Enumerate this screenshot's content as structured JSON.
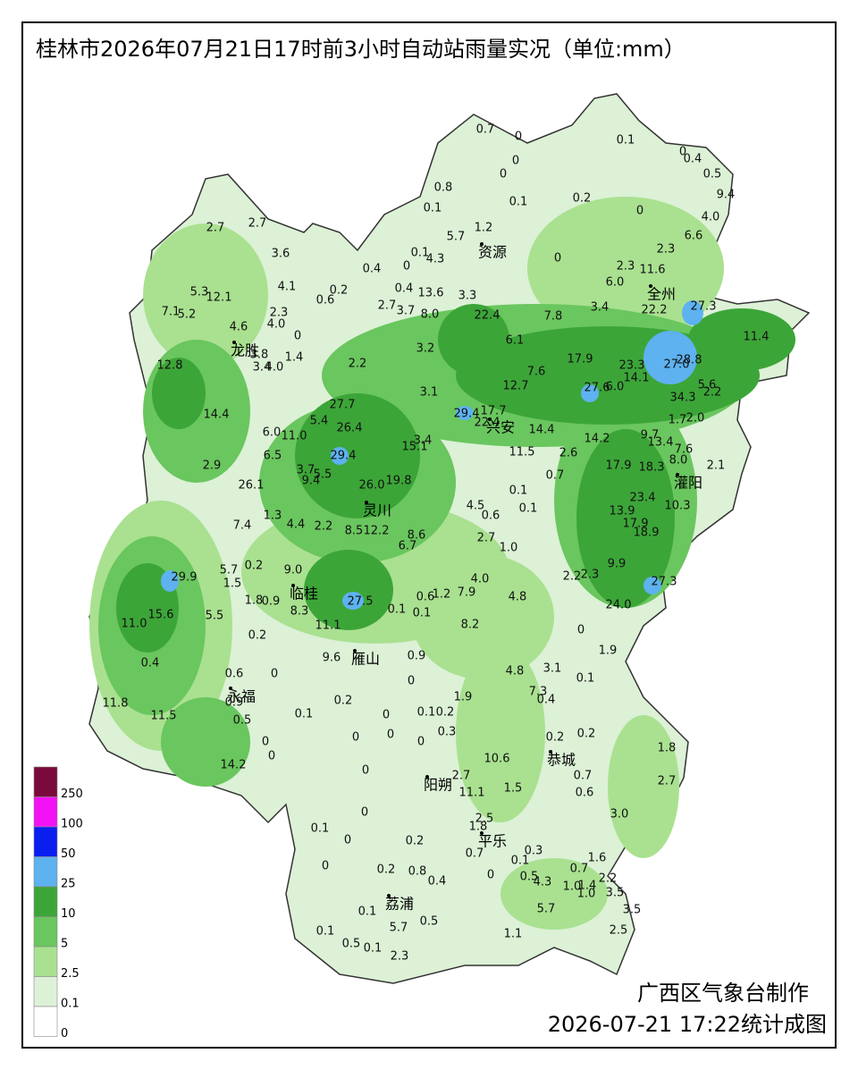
{
  "title": "桂林市2026年07月21日17时前3小时自动站雨量实况（单位:mm）",
  "legend": [
    {
      "label": 250,
      "color": "#7b0a3c"
    },
    {
      "label": 100,
      "color": "#f312f3"
    },
    {
      "label": 50,
      "color": "#0a1ef0"
    },
    {
      "label": 25,
      "color": "#5db2ef"
    },
    {
      "label": 10,
      "color": "#3ca538"
    },
    {
      "label": 5,
      "color": "#6ac65e"
    },
    {
      "label": 2.5,
      "color": "#a9e190"
    },
    {
      "label": 0.1,
      "color": "#dcf1d6"
    },
    {
      "label": 0,
      "color": "#ffffff"
    }
  ],
  "cities": [
    "资源",
    "全州",
    "龙胜",
    "兴安",
    "灌阳",
    "灵川",
    "临桂",
    "雁山",
    "永福",
    "阳朔",
    "恭城",
    "平乐",
    "荔浦"
  ],
  "stations": [
    "0.7",
    "0",
    "0",
    "0.1",
    "0",
    "0.4",
    "0.5",
    "9.4",
    "0.8",
    "0",
    "0.1",
    "0.2",
    "0",
    "4.0",
    "0.1",
    "1.2",
    "6.6",
    "5.7",
    "2.7",
    "2.7",
    "3.6",
    "0.1",
    "4.3",
    "0",
    "2.3",
    "2.3",
    "11.6",
    "0.4",
    "0",
    "6.0",
    "4.1",
    "0.2",
    "0.4",
    "13.6",
    "3.3",
    "5.3",
    "12.1",
    "0.6",
    "2.7",
    "3.7",
    "8.0",
    "22.4",
    "7.8",
    "3.4",
    "22.2",
    "27.3",
    "7.1",
    "5.2",
    "2.3",
    "4.0",
    "4.6",
    "0",
    "11.4",
    "6.1",
    "3.2",
    "1.4",
    "3.8",
    "3.4",
    "4.0",
    "2.2",
    "17.9",
    "23.3",
    "27.0",
    "28.8",
    "12.8",
    "14.1",
    "7.6",
    "12.7",
    "27.6",
    "6.0",
    "5.6",
    "2.2",
    "3.1",
    "27.7",
    "34.3",
    "29.4",
    "17.7",
    "22.4",
    "14.4",
    "5.4",
    "26.4",
    "1.7",
    "2.0",
    "6.0",
    "11.0",
    "14.4",
    "14.2",
    "3.4",
    "15.1",
    "9.7",
    "13.4",
    "7.6",
    "29.4",
    "6.5",
    "11.5",
    "2.6",
    "8.0",
    "2.1",
    "2.9",
    "17.9",
    "18.3",
    "3.7",
    "5.5",
    "9.4",
    "0.7",
    "26.0",
    "19.8",
    "26.1",
    "0.1",
    "23.4",
    "13.9",
    "10.3",
    "1.3",
    "4.5",
    "0.6",
    "0.1",
    "7.4",
    "4.4",
    "2.2",
    "8.5",
    "12.2",
    "8.6",
    "17.9",
    "18.9",
    "2.7",
    "6.7",
    "1.0",
    "5.7",
    "0.2",
    "9.0",
    "9.9",
    "2.2",
    "2.3",
    "27.3",
    "29.9",
    "1.5",
    "4.0",
    "1.8",
    "0.9",
    "1.2",
    "0.6",
    "7.9",
    "4.8",
    "8.3",
    "27.5",
    "0.1",
    "0.1",
    "24.0",
    "15.6",
    "5.5",
    "11.0",
    "8.2",
    "0.2",
    "11.1",
    "0",
    "1.9",
    "0.4",
    "9.6",
    "0.9",
    "0.6",
    "0",
    "4.8",
    "3.1",
    "0.1",
    "0",
    "7.3",
    "1.9",
    "0.9",
    "0.4",
    "11.8",
    "0.2",
    "0.1",
    "11.5",
    "0",
    "0.1",
    "0.2",
    "0.5",
    "0.3",
    "0.2",
    "0.2",
    "0",
    "0",
    "0",
    "1.8",
    "0",
    "0",
    "10.6",
    "14.2",
    "0",
    "2.7",
    "0.7",
    "2.7",
    "1.5",
    "11.1",
    "0.6",
    "0",
    "3.0",
    "2.5",
    "1.8",
    "0.1",
    "0",
    "0.2",
    "0.3",
    "0.7",
    "1.6",
    "0.1",
    "0.7",
    "0",
    "0.2",
    "0.8",
    "0",
    "0.5",
    "4.3",
    "2.2",
    "0.4",
    "1.0",
    "1.4",
    "3.5",
    "1.0",
    "5.7",
    "3.5",
    "0.1",
    "0.5",
    "5.7",
    "0.1",
    "2.5",
    "1.1",
    "0.5",
    "0.1",
    "2.3"
  ],
  "footer": {
    "org": "广西区气象台制作",
    "timestamp": "2026-07-21 17:22统计成图"
  }
}
